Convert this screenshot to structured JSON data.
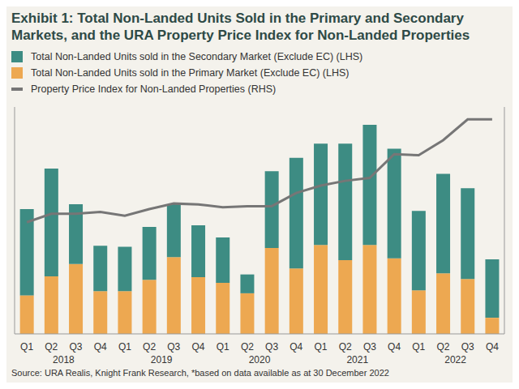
{
  "chart_data": {
    "type": "bar",
    "title": "Exhibit 1: Total Non-Landed Units Sold in the Primary and Secondary Markets, and the URA Property Price Index for Non-Landed Properties",
    "footnote": "Source: URA Realis, Knight Frank Research, *based on data available as at 30 December 2022",
    "categories": [
      "Q1",
      "Q2",
      "Q3",
      "Q4",
      "Q1",
      "Q2",
      "Q3",
      "Q4",
      "Q1",
      "Q2",
      "Q3",
      "Q4",
      "Q1",
      "Q2",
      "Q3",
      "Q4",
      "Q1",
      "Q2",
      "Q3",
      "Q4"
    ],
    "groups": [
      "2018",
      "2019",
      "2020",
      "2021",
      "2022"
    ],
    "stacked": true,
    "grid": false,
    "tick_labels": "x",
    "ylim": [
      0,
      10000
    ],
    "y2lim": [
      80,
      190
    ],
    "series": [
      {
        "name": "Total Non-Landed Units sold in the Secondary Market (Exclude EC) (LHS)",
        "type": "bar",
        "color": "#3d8c83",
        "values": [
          3800,
          4750,
          2630,
          2000,
          1960,
          2330,
          2330,
          2290,
          2000,
          830,
          3380,
          4880,
          4460,
          5130,
          5290,
          4830,
          3500,
          4380,
          4000,
          2580
        ]
      },
      {
        "name": "Total Non-Landed Units sold in the Primary Market (Exclude EC) (LHS)",
        "type": "bar",
        "color": "#eda851",
        "values": [
          1700,
          2540,
          3080,
          1880,
          1880,
          2380,
          3380,
          2500,
          2250,
          1790,
          3790,
          2880,
          3920,
          3250,
          3920,
          3330,
          1920,
          2670,
          2420,
          710
        ]
      },
      {
        "name": "Property Price Index for Non-Landed Properties (RHS)",
        "type": "line",
        "axis": "y2",
        "color": "#767676",
        "values": [
          134.1,
          138.2,
          138.2,
          139.1,
          137.3,
          140.5,
          143.2,
          142.8,
          141.4,
          141.9,
          141.9,
          148.3,
          151.9,
          154.2,
          155.6,
          167.1,
          166.6,
          173.9,
          184.0,
          184.0
        ]
      }
    ]
  }
}
